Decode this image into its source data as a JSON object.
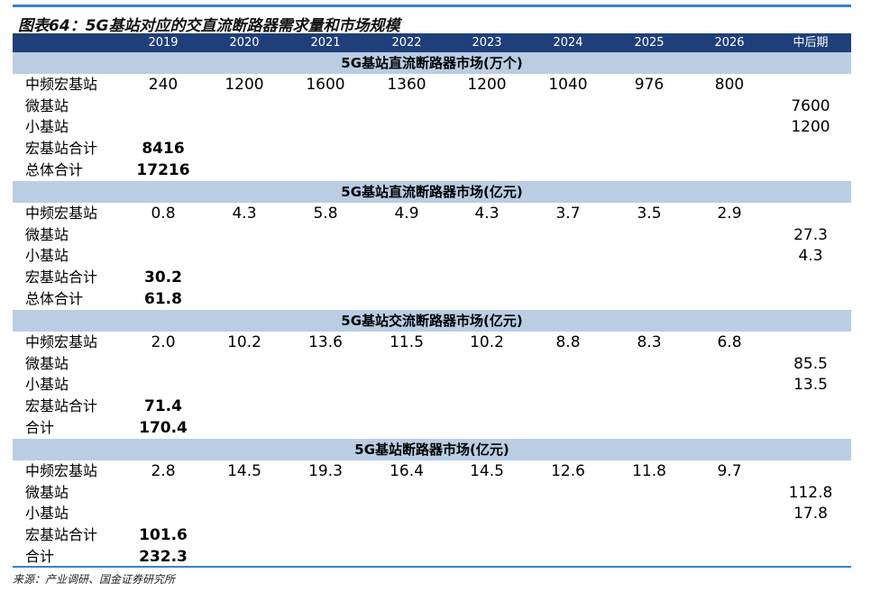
{
  "title": "图表64：5G基站对应的交直流断路器需求量和市场规模",
  "columns": [
    "2019",
    "2020",
    "2021",
    "2022",
    "2023",
    "2024",
    "2025",
    "2026",
    "中后期"
  ],
  "sections": [
    {
      "title": "5G基站直流断路器市场(万个)",
      "rows": [
        {
          "label": "中频宏基站",
          "values": [
            "240",
            "1200",
            "1600",
            "1360",
            "1200",
            "1040",
            "976",
            "800",
            ""
          ]
        },
        {
          "label": "微基站",
          "values": [
            "",
            "",
            "",
            "",
            "",
            "",
            "",
            "",
            "7600"
          ]
        },
        {
          "label": "小基站",
          "values": [
            "",
            "",
            "",
            "",
            "",
            "",
            "",
            "",
            "1200"
          ]
        },
        {
          "label": "宏基站合计",
          "values": [
            "8416",
            "",
            "",
            "",
            "",
            "",
            "",
            "",
            ""
          ],
          "bold": true
        },
        {
          "label": "总体合计",
          "values": [
            "17216",
            "",
            "",
            "",
            "",
            "",
            "",
            "",
            ""
          ],
          "bold": true
        }
      ]
    },
    {
      "title": "5G基站直流断路器市场(亿元)",
      "rows": [
        {
          "label": "中频宏基站",
          "values": [
            "0.8",
            "4.3",
            "5.8",
            "4.9",
            "4.3",
            "3.7",
            "3.5",
            "2.9",
            ""
          ]
        },
        {
          "label": "微基站",
          "values": [
            "",
            "",
            "",
            "",
            "",
            "",
            "",
            "",
            "27.3"
          ]
        },
        {
          "label": "小基站",
          "values": [
            "",
            "",
            "",
            "",
            "",
            "",
            "",
            "",
            "4.3"
          ]
        },
        {
          "label": "宏基站合计",
          "values": [
            "30.2",
            "",
            "",
            "",
            "",
            "",
            "",
            "",
            ""
          ],
          "bold": true
        },
        {
          "label": "总体合计",
          "values": [
            "61.8",
            "",
            "",
            "",
            "",
            "",
            "",
            "",
            ""
          ],
          "bold": true
        }
      ]
    },
    {
      "title": "5G基站交流断路器市场(亿元)",
      "rows": [
        {
          "label": "中频宏基站",
          "values": [
            "2.0",
            "10.2",
            "13.6",
            "11.5",
            "10.2",
            "8.8",
            "8.3",
            "6.8",
            ""
          ]
        },
        {
          "label": "微基站",
          "values": [
            "",
            "",
            "",
            "",
            "",
            "",
            "",
            "",
            "85.5"
          ]
        },
        {
          "label": "小基站",
          "values": [
            "",
            "",
            "",
            "",
            "",
            "",
            "",
            "",
            "13.5"
          ]
        },
        {
          "label": "宏基站合计",
          "values": [
            "71.4",
            "",
            "",
            "",
            "",
            "",
            "",
            "",
            ""
          ],
          "bold": true
        },
        {
          "label": "合计",
          "values": [
            "170.4",
            "",
            "",
            "",
            "",
            "",
            "",
            "",
            ""
          ],
          "bold": true
        }
      ]
    },
    {
      "title": "5G基站断路器市场(亿元)",
      "rows": [
        {
          "label": "中频宏基站",
          "values": [
            "2.8",
            "14.5",
            "19.3",
            "16.4",
            "14.5",
            "12.6",
            "11.8",
            "9.7",
            ""
          ]
        },
        {
          "label": "微基站",
          "values": [
            "",
            "",
            "",
            "",
            "",
            "",
            "",
            "",
            "112.8"
          ]
        },
        {
          "label": "小基站",
          "values": [
            "",
            "",
            "",
            "",
            "",
            "",
            "",
            "",
            "17.8"
          ]
        },
        {
          "label": "宏基站合计",
          "values": [
            "101.6",
            "",
            "",
            "",
            "",
            "",
            "",
            "",
            ""
          ],
          "bold": true
        },
        {
          "label": "合计",
          "values": [
            "232.3",
            "",
            "",
            "",
            "",
            "",
            "",
            "",
            ""
          ],
          "bold": true
        }
      ]
    }
  ],
  "source": "来源：产业调研、国金证券研究所",
  "colors": {
    "accent": "#3a7fc4",
    "header_bg": "#1f3f7a",
    "section_bg": "#b9cde3"
  }
}
